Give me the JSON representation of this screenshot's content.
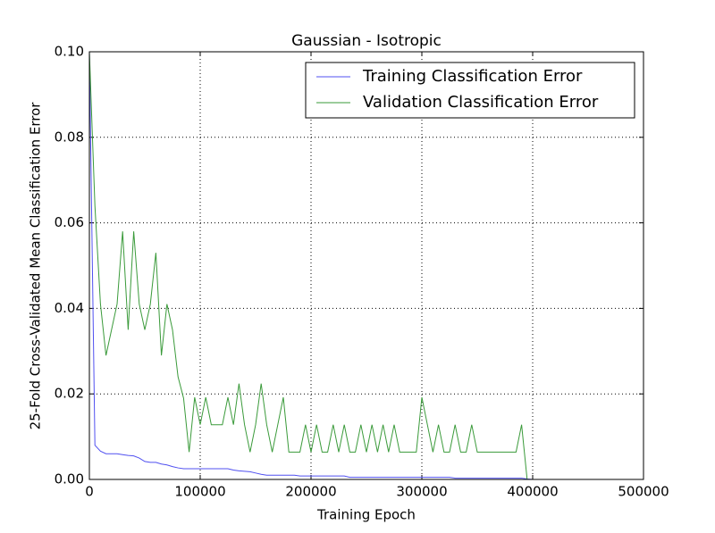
{
  "chart_data": {
    "type": "line",
    "title": "Gaussian - Isotropic",
    "xlabel": "Training Epoch",
    "ylabel": "25-Fold Cross-Validated Mean Classification Error",
    "x": [
      0,
      5000,
      10000,
      15000,
      20000,
      25000,
      30000,
      35000,
      40000,
      45000,
      50000,
      55000,
      60000,
      65000,
      70000,
      75000,
      80000,
      85000,
      90000,
      95000,
      100000,
      105000,
      110000,
      115000,
      120000,
      125000,
      130000,
      135000,
      140000,
      145000,
      150000,
      155000,
      160000,
      165000,
      170000,
      175000,
      180000,
      185000,
      190000,
      195000,
      200000,
      205000,
      210000,
      215000,
      220000,
      225000,
      230000,
      235000,
      240000,
      245000,
      250000,
      255000,
      260000,
      265000,
      270000,
      275000,
      280000,
      285000,
      290000,
      295000,
      300000,
      305000,
      310000,
      315000,
      320000,
      325000,
      330000,
      335000,
      340000,
      345000,
      350000,
      355000,
      360000,
      365000,
      370000,
      375000,
      380000,
      385000,
      390000,
      395000,
      400000
    ],
    "series": [
      {
        "name": "Training Classification Error",
        "color": "#5050f0",
        "values": [
          0.1,
          0.008,
          0.0066,
          0.006,
          0.006,
          0.006,
          0.0058,
          0.0056,
          0.0055,
          0.005,
          0.0042,
          0.004,
          0.004,
          0.0036,
          0.0034,
          0.003,
          0.0027,
          0.0025,
          0.0025,
          0.0025,
          0.0025,
          0.0025,
          0.0025,
          0.0025,
          0.0025,
          0.0025,
          0.0022,
          0.002,
          0.0019,
          0.0018,
          0.0015,
          0.0012,
          0.001,
          0.001,
          0.001,
          0.001,
          0.001,
          0.001,
          0.0008,
          0.0008,
          0.0008,
          0.0008,
          0.0008,
          0.0008,
          0.0008,
          0.0008,
          0.0008,
          0.0005,
          0.0005,
          0.0005,
          0.0005,
          0.0005,
          0.0005,
          0.0005,
          0.0005,
          0.0005,
          0.0005,
          0.0005,
          0.0005,
          0.0005,
          0.0005,
          0.0005,
          0.0005,
          0.0005,
          0.0005,
          0.0005,
          0.0003,
          0.0003,
          0.0003,
          0.0003,
          0.0003,
          0.0003,
          0.0003,
          0.0003,
          0.0003,
          0.0003,
          0.0003,
          0.0003,
          0.0003,
          0.0001,
          0
        ]
      },
      {
        "name": "Validation Classification Error",
        "color": "#3a9a3a",
        "values": [
          0.1,
          0.064,
          0.041,
          0.029,
          0.035,
          0.041,
          0.058,
          0.035,
          0.058,
          0.041,
          0.035,
          0.041,
          0.053,
          0.029,
          0.041,
          0.035,
          0.024,
          0.019,
          0.0064,
          0.0192,
          0.0128,
          0.0192,
          0.0128,
          0.0128,
          0.0128,
          0.0192,
          0.0128,
          0.0224,
          0.0128,
          0.0064,
          0.0128,
          0.0224,
          0.0128,
          0.0064,
          0.0128,
          0.0192,
          0.0064,
          0.0064,
          0.0064,
          0.0128,
          0.0064,
          0.0128,
          0.0064,
          0.0064,
          0.0128,
          0.0064,
          0.0128,
          0.0064,
          0.0064,
          0.0128,
          0.0064,
          0.0128,
          0.0064,
          0.0128,
          0.0064,
          0.0128,
          0.0064,
          0.0064,
          0.0064,
          0.0064,
          0.0192,
          0.0128,
          0.0064,
          0.0128,
          0.0064,
          0.0064,
          0.0128,
          0.0064,
          0.0064,
          0.0128,
          0.0064,
          0.0064,
          0.0064,
          0.0064,
          0.0064,
          0.0064,
          0.0064,
          0.0064,
          0.0128,
          0,
          0
        ]
      }
    ],
    "xlim": [
      0,
      500000
    ],
    "xticks": [
      0,
      100000,
      200000,
      300000,
      400000,
      500000
    ],
    "ylim": [
      0,
      0.1
    ],
    "yticks": [
      {
        "value": 0,
        "label": "0.00"
      },
      {
        "value": 0.02,
        "label": "0.02"
      },
      {
        "value": 0.04,
        "label": "0.04"
      },
      {
        "value": 0.06,
        "label": "0.06"
      },
      {
        "value": 0.08,
        "label": "0.08"
      },
      {
        "value": 0.1,
        "label": "0.10"
      }
    ],
    "grid": true,
    "legend": "upper right"
  }
}
